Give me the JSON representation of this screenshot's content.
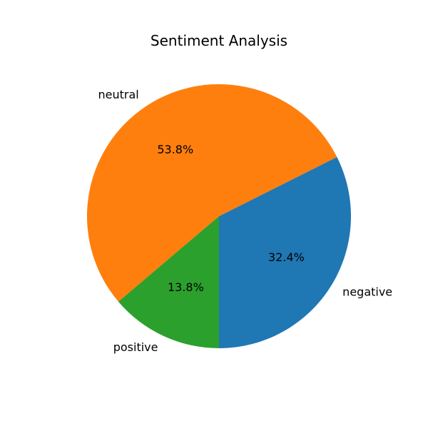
{
  "chart_data": {
    "type": "pie",
    "title": "Sentiment Analysis",
    "categories": [
      "negative",
      "neutral",
      "positive"
    ],
    "values": [
      32.4,
      53.8,
      13.8
    ],
    "percent_labels": [
      "32.4%",
      "53.8%",
      "13.8%"
    ],
    "colors": [
      "#1f77b4",
      "#ff7f0e",
      "#2ca02c"
    ],
    "start_angle": "bottom",
    "direction": "counterclockwise",
    "legend": "none"
  }
}
